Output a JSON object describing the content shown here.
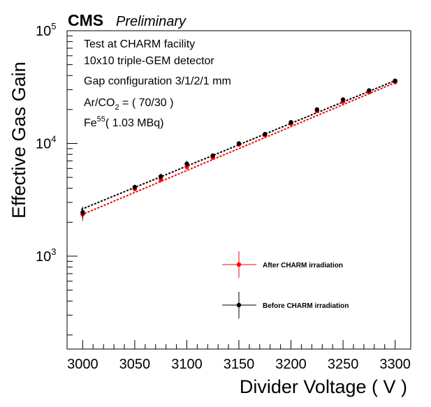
{
  "header": {
    "experiment": "CMS",
    "status": "Preliminary"
  },
  "info": {
    "line1": "Test at CHARM facility",
    "line2": "10x10 triple-GEM detector",
    "line3": "Gap configuration 3/1/2/1 mm",
    "gas_prefix": "Ar/CO",
    "gas_sub": "2",
    "gas_suffix": " = ( 70/30 )",
    "source_prefix": "Fe",
    "source_sup": "55",
    "source_suffix": "( 1.03 MBq)"
  },
  "colors": {
    "after": "#ff0000",
    "before": "#000000"
  },
  "chart_data": {
    "type": "scatter",
    "xlabel": "Divider Voltage ( V )",
    "ylabel": "Effective Gas Gain",
    "xlim": [
      2985,
      3315
    ],
    "ylim": [
      150,
      100000
    ],
    "y_scale": "log",
    "x_ticks": [
      3000,
      3050,
      3100,
      3150,
      3200,
      3250,
      3300
    ],
    "y_tick_labels": [
      {
        "base": "10",
        "exp": "3",
        "value": 1000
      },
      {
        "base": "10",
        "exp": "4",
        "value": 10000
      },
      {
        "base": "10",
        "exp": "5",
        "value": 100000
      }
    ],
    "legend_position": "bottom-right",
    "series": [
      {
        "name": "After CHARM irradiation",
        "color": "#ff0000",
        "x": [
          3000,
          3050,
          3075,
          3100,
          3125,
          3150,
          3175,
          3200,
          3225,
          3250,
          3275,
          3300
        ],
        "y": [
          2350,
          3950,
          4800,
          6200,
          7500,
          9800,
          11800,
          15000,
          19500,
          23500,
          28500,
          35000
        ],
        "yerr": [
          300,
          200,
          300,
          350,
          350,
          400,
          450,
          550,
          650,
          750,
          900,
          1100
        ],
        "fit": [
          2320,
          35000
        ]
      },
      {
        "name": "Before CHARM irradiation",
        "color": "#000000",
        "x": [
          3000,
          3050,
          3075,
          3100,
          3125,
          3150,
          3175,
          3200,
          3225,
          3250,
          3275,
          3300
        ],
        "y": [
          2450,
          4100,
          5100,
          6600,
          7800,
          10000,
          12100,
          15400,
          20000,
          24500,
          29500,
          36000
        ],
        "yerr": [
          300,
          200,
          300,
          400,
          350,
          400,
          450,
          550,
          650,
          750,
          900,
          1100
        ],
        "fit": [
          2600,
          36500
        ]
      }
    ]
  }
}
